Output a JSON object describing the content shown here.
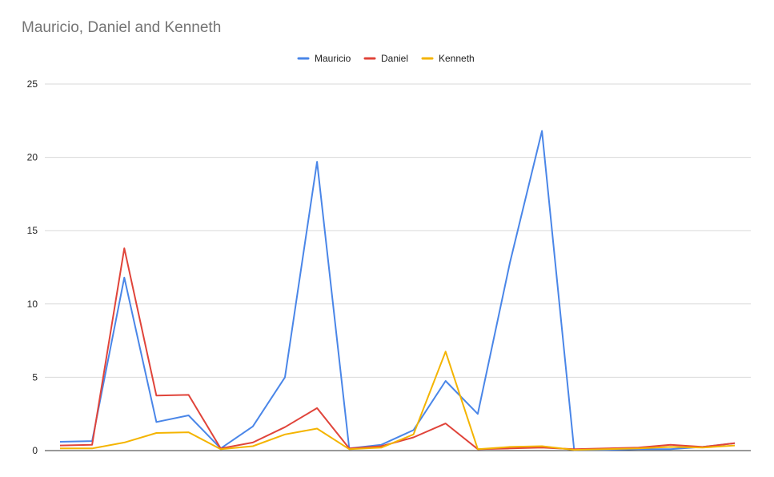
{
  "chart_data": {
    "type": "line",
    "title": "Mauricio, Daniel and Kenneth",
    "xlabel": "",
    "ylabel": "",
    "ylim": [
      0,
      25
    ],
    "yticks": [
      0,
      5,
      10,
      15,
      20,
      25
    ],
    "grid": true,
    "legend_position": "top",
    "x": [
      1,
      2,
      3,
      4,
      5,
      6,
      7,
      8,
      9,
      10,
      11,
      12,
      13,
      14,
      15,
      16,
      17,
      18,
      19,
      20,
      21,
      22
    ],
    "series": [
      {
        "name": "Mauricio",
        "color": "#4a86e8",
        "values": [
          0.6,
          0.65,
          11.8,
          1.95,
          2.4,
          0.15,
          1.65,
          5.0,
          19.7,
          0.15,
          0.4,
          1.4,
          4.75,
          2.5,
          12.8,
          21.8,
          0.05,
          0.05,
          0.1,
          0.1,
          0.25,
          0.5
        ]
      },
      {
        "name": "Daniel",
        "color": "#e0443a",
        "values": [
          0.35,
          0.4,
          13.8,
          3.75,
          3.8,
          0.15,
          0.55,
          1.6,
          2.9,
          0.15,
          0.3,
          0.9,
          1.85,
          0.1,
          0.15,
          0.2,
          0.1,
          0.15,
          0.2,
          0.4,
          0.25,
          0.5
        ]
      },
      {
        "name": "Kenneth",
        "color": "#f4b400",
        "values": [
          0.15,
          0.15,
          0.55,
          1.2,
          1.25,
          0.1,
          0.3,
          1.1,
          1.5,
          0.1,
          0.2,
          1.1,
          6.75,
          0.1,
          0.25,
          0.3,
          0.05,
          0.1,
          0.15,
          0.25,
          0.2,
          0.35
        ]
      }
    ]
  }
}
